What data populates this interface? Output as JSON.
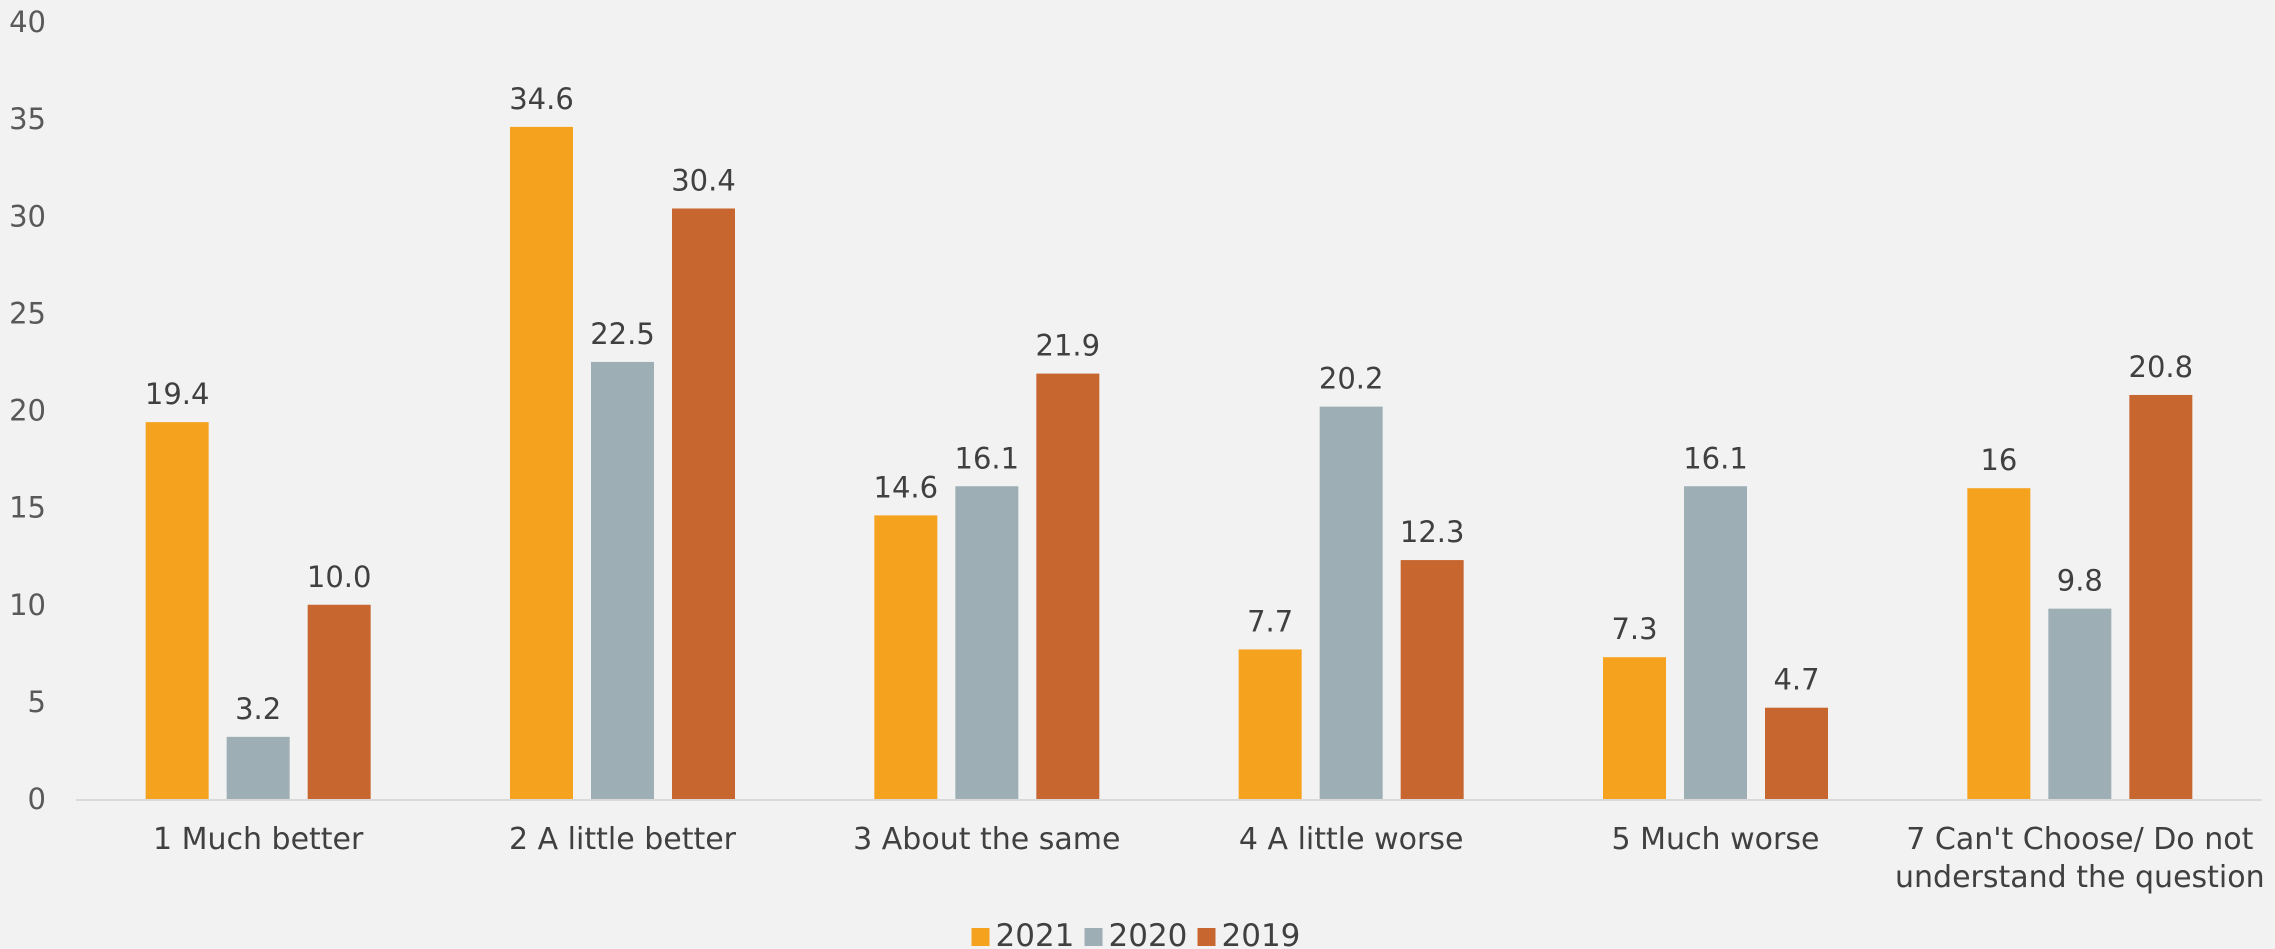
{
  "chart_data": {
    "type": "bar",
    "categories": [
      [
        "1 Much better"
      ],
      [
        "2 A little better"
      ],
      [
        "3 About the same"
      ],
      [
        "4 A little worse"
      ],
      [
        "5 Much worse"
      ],
      [
        "7 Can't Choose/ Do not",
        "understand the question"
      ]
    ],
    "series": [
      {
        "name": "2021",
        "color": "#f5a21f",
        "values": [
          19.4,
          34.6,
          14.6,
          7.7,
          7.3,
          16
        ],
        "labels": [
          "19.4",
          "34.6",
          "14.6",
          "7.7",
          "7.3",
          "16"
        ]
      },
      {
        "name": "2020",
        "color": "#9dafb5",
        "values": [
          3.2,
          22.5,
          16.1,
          20.2,
          16.1,
          9.8
        ],
        "labels": [
          "3.2",
          "22.5",
          "16.1",
          "20.2",
          "16.1",
          "9.8"
        ]
      },
      {
        "name": "2019",
        "color": "#c86630",
        "values": [
          10.0,
          30.4,
          21.9,
          12.3,
          4.7,
          20.8
        ],
        "labels": [
          "10.0",
          "30.4",
          "21.9",
          "12.3",
          "4.7",
          "20.8"
        ]
      }
    ],
    "ylim": [
      0,
      40
    ],
    "yticks": [
      0,
      5,
      10,
      15,
      20,
      25,
      30,
      35,
      40
    ],
    "grid": false,
    "legend": "bottom-center",
    "axis_color": "#d9d9d9"
  }
}
